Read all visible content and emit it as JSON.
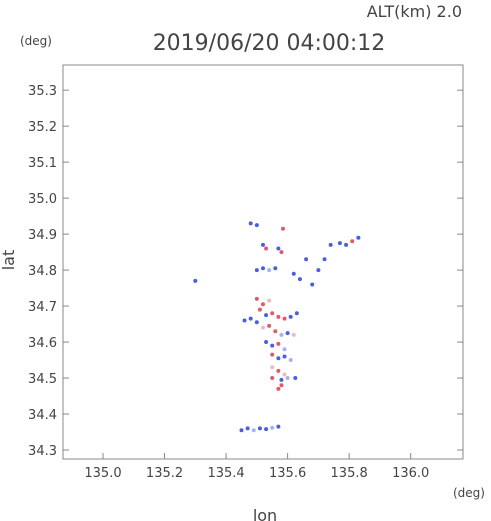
{
  "chart_data": {
    "type": "scatter",
    "title": "2019/06/20 04:00:12",
    "subtitle": "ALT(km) 2.0",
    "xlabel": "lon",
    "ylabel": "lat",
    "x_unit": "(deg)",
    "y_unit": "(deg)",
    "xlim": [
      134.87,
      136.17
    ],
    "ylim": [
      34.275,
      35.37
    ],
    "x_ticks": [
      "135.0",
      "135.2",
      "135.4",
      "135.6",
      "135.8",
      "136.0"
    ],
    "y_ticks": [
      "34.3",
      "34.4",
      "34.5",
      "34.6",
      "34.7",
      "34.8",
      "34.9",
      "35.0",
      "35.1",
      "35.2",
      "35.3"
    ],
    "grid": false,
    "colors": {
      "positive": "#e05a6a",
      "negative": "#4a5ee0",
      "light_positive": "#f2b8c0",
      "light_negative": "#a8b2f0"
    },
    "series": [
      {
        "values": [
          {
            "x": 135.48,
            "y": 34.93,
            "c": "negative"
          },
          {
            "x": 135.5,
            "y": 34.925,
            "c": "negative"
          },
          {
            "x": 135.585,
            "y": 34.915,
            "c": "positive"
          },
          {
            "x": 135.52,
            "y": 34.87,
            "c": "negative"
          },
          {
            "x": 135.53,
            "y": 34.86,
            "c": "positive"
          },
          {
            "x": 135.57,
            "y": 34.86,
            "c": "negative"
          },
          {
            "x": 135.58,
            "y": 34.85,
            "c": "positive"
          },
          {
            "x": 135.5,
            "y": 34.8,
            "c": "negative"
          },
          {
            "x": 135.52,
            "y": 34.805,
            "c": "negative"
          },
          {
            "x": 135.54,
            "y": 34.8,
            "c": "light_negative"
          },
          {
            "x": 135.56,
            "y": 34.805,
            "c": "negative"
          },
          {
            "x": 135.62,
            "y": 34.79,
            "c": "negative"
          },
          {
            "x": 135.64,
            "y": 34.775,
            "c": "negative"
          },
          {
            "x": 135.68,
            "y": 34.76,
            "c": "negative"
          },
          {
            "x": 135.7,
            "y": 34.8,
            "c": "negative"
          },
          {
            "x": 135.72,
            "y": 34.83,
            "c": "negative"
          },
          {
            "x": 135.74,
            "y": 34.87,
            "c": "negative"
          },
          {
            "x": 135.77,
            "y": 34.875,
            "c": "negative"
          },
          {
            "x": 135.79,
            "y": 34.87,
            "c": "negative"
          },
          {
            "x": 135.83,
            "y": 34.89,
            "c": "negative"
          },
          {
            "x": 135.81,
            "y": 34.88,
            "c": "positive"
          },
          {
            "x": 135.66,
            "y": 34.83,
            "c": "negative"
          },
          {
            "x": 135.3,
            "y": 34.77,
            "c": "negative"
          },
          {
            "x": 135.5,
            "y": 34.72,
            "c": "positive"
          },
          {
            "x": 135.52,
            "y": 34.705,
            "c": "positive"
          },
          {
            "x": 135.54,
            "y": 34.715,
            "c": "light_positive"
          },
          {
            "x": 135.51,
            "y": 34.69,
            "c": "positive"
          },
          {
            "x": 135.53,
            "y": 34.675,
            "c": "negative"
          },
          {
            "x": 135.55,
            "y": 34.68,
            "c": "positive"
          },
          {
            "x": 135.57,
            "y": 34.67,
            "c": "positive"
          },
          {
            "x": 135.59,
            "y": 34.665,
            "c": "positive"
          },
          {
            "x": 135.61,
            "y": 34.67,
            "c": "negative"
          },
          {
            "x": 135.63,
            "y": 34.68,
            "c": "negative"
          },
          {
            "x": 135.46,
            "y": 34.66,
            "c": "negative"
          },
          {
            "x": 135.48,
            "y": 34.665,
            "c": "negative"
          },
          {
            "x": 135.5,
            "y": 34.655,
            "c": "negative"
          },
          {
            "x": 135.52,
            "y": 34.64,
            "c": "light_positive"
          },
          {
            "x": 135.54,
            "y": 34.645,
            "c": "positive"
          },
          {
            "x": 135.56,
            "y": 34.63,
            "c": "positive"
          },
          {
            "x": 135.58,
            "y": 34.62,
            "c": "light_negative"
          },
          {
            "x": 135.6,
            "y": 34.625,
            "c": "negative"
          },
          {
            "x": 135.62,
            "y": 34.62,
            "c": "light_positive"
          },
          {
            "x": 135.53,
            "y": 34.6,
            "c": "negative"
          },
          {
            "x": 135.55,
            "y": 34.59,
            "c": "negative"
          },
          {
            "x": 135.57,
            "y": 34.595,
            "c": "positive"
          },
          {
            "x": 135.59,
            "y": 34.58,
            "c": "light_negative"
          },
          {
            "x": 135.55,
            "y": 34.565,
            "c": "positive"
          },
          {
            "x": 135.57,
            "y": 34.555,
            "c": "negative"
          },
          {
            "x": 135.59,
            "y": 34.56,
            "c": "negative"
          },
          {
            "x": 135.61,
            "y": 34.55,
            "c": "light_negative"
          },
          {
            "x": 135.55,
            "y": 34.53,
            "c": "light_positive"
          },
          {
            "x": 135.57,
            "y": 34.52,
            "c": "positive"
          },
          {
            "x": 135.59,
            "y": 34.51,
            "c": "light_positive"
          },
          {
            "x": 135.55,
            "y": 34.5,
            "c": "positive"
          },
          {
            "x": 135.58,
            "y": 34.495,
            "c": "negative"
          },
          {
            "x": 135.6,
            "y": 34.5,
            "c": "light_negative"
          },
          {
            "x": 135.625,
            "y": 34.5,
            "c": "negative"
          },
          {
            "x": 135.58,
            "y": 34.48,
            "c": "positive"
          },
          {
            "x": 135.57,
            "y": 34.47,
            "c": "positive"
          },
          {
            "x": 135.45,
            "y": 34.355,
            "c": "negative"
          },
          {
            "x": 135.47,
            "y": 34.36,
            "c": "negative"
          },
          {
            "x": 135.49,
            "y": 34.355,
            "c": "light_negative"
          },
          {
            "x": 135.51,
            "y": 34.36,
            "c": "negative"
          },
          {
            "x": 135.53,
            "y": 34.358,
            "c": "negative"
          },
          {
            "x": 135.55,
            "y": 34.362,
            "c": "light_negative"
          },
          {
            "x": 135.57,
            "y": 34.365,
            "c": "negative"
          }
        ]
      }
    ]
  }
}
